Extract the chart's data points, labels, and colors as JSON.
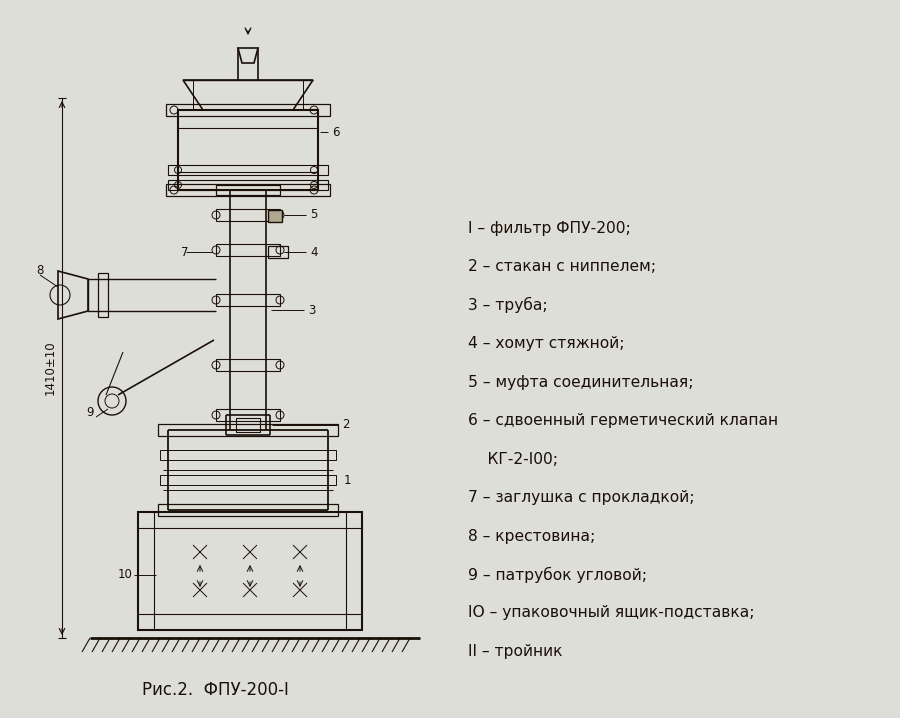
{
  "background_color": "#deded8",
  "text_color": "#1a1008",
  "caption": "Рис.2.  ФПУ-200-I",
  "caption_fontsize": 12,
  "legend_items": [
    "I – фильтр ФПУ-200;",
    "2 – стакан с ниппелем;",
    "3 – труба;",
    "4 – хомут стяжной;",
    "5 – муфта соединительная;",
    "6 – сдвоенный герметический клапан",
    "    КГ-2-I00;",
    "7 – заглушка с прокладкой;",
    "8 – крестовина;",
    "9 – патрубок угловой;",
    "IO – упаковочный ящик-подставка;",
    "II – тройник"
  ],
  "dim_label": "1410±10"
}
